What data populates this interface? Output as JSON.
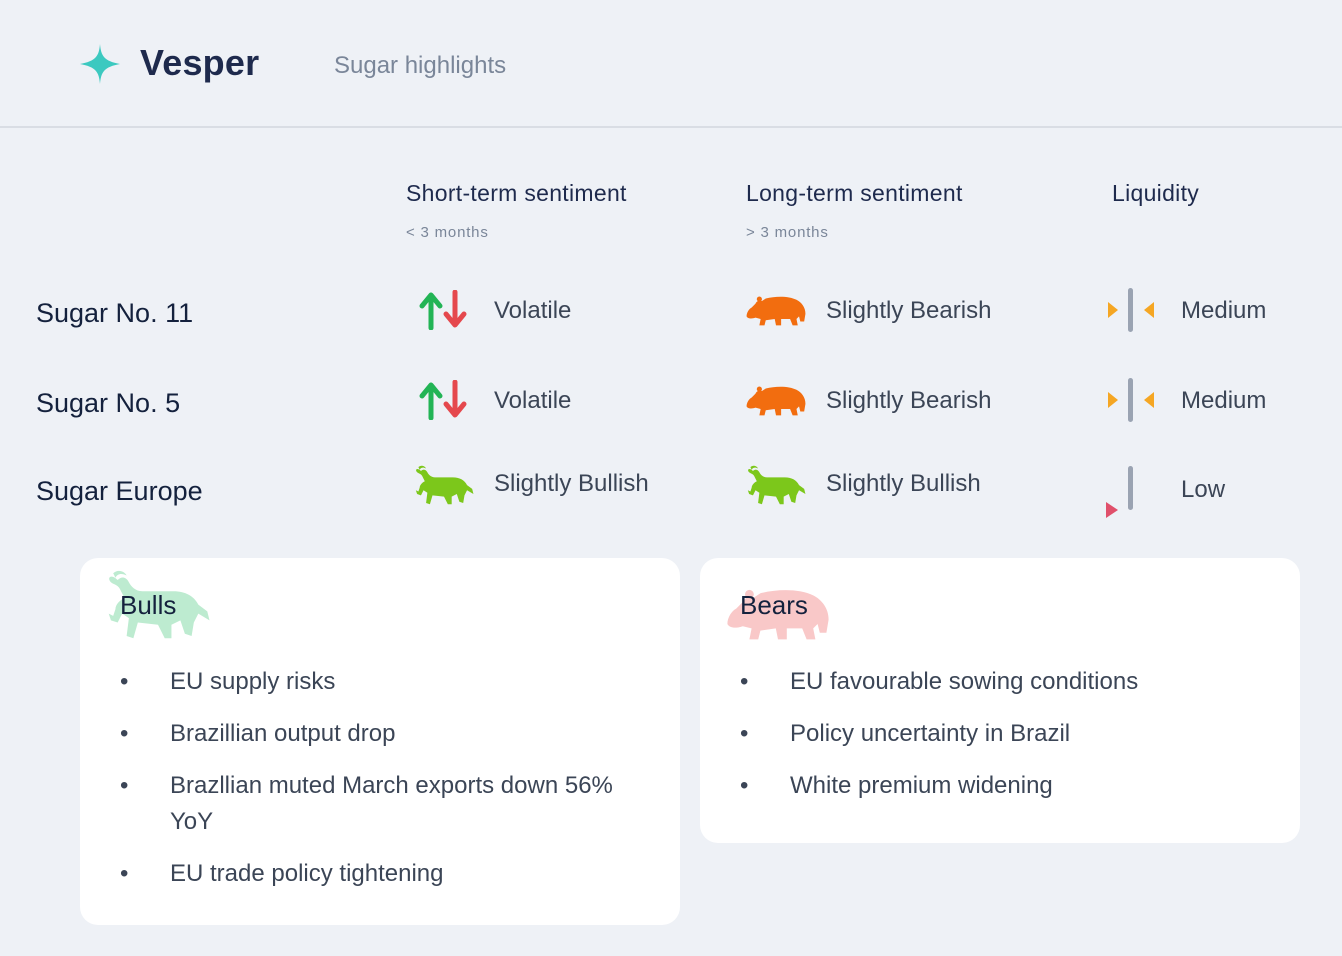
{
  "header": {
    "brand": "Vesper",
    "title": "Sugar highlights"
  },
  "columns": {
    "short_term": {
      "label": "Short-term sentiment",
      "sub": "< 3 months"
    },
    "long_term": {
      "label": "Long-term sentiment",
      "sub": "> 3 months"
    },
    "liquidity": {
      "label": "Liquidity"
    }
  },
  "rows": [
    {
      "name": "Sugar No. 11",
      "short_term": "Volatile",
      "short_icon": "up-down-arrows-icon",
      "long_term": "Slightly Bearish",
      "long_icon": "bear-icon",
      "liquidity": "Medium"
    },
    {
      "name": "Sugar No. 5",
      "short_term": "Volatile",
      "short_icon": "up-down-arrows-icon",
      "long_term": "Slightly Bearish",
      "long_icon": "bear-icon",
      "liquidity": "Medium"
    },
    {
      "name": "Sugar Europe",
      "short_term": "Slightly Bullish",
      "short_icon": "bull-icon",
      "long_term": "Slightly Bullish",
      "long_icon": "bull-icon",
      "liquidity": "Low"
    }
  ],
  "bulls": {
    "title": "Bulls",
    "items": [
      "EU supply risks",
      "Brazillian output drop",
      "Brazllian muted March exports down 56% YoY",
      "EU trade policy tightening"
    ]
  },
  "bears": {
    "title": "Bears",
    "items": [
      "EU favourable sowing conditions",
      "Policy uncertainty in Brazil",
      "White premium widening"
    ]
  },
  "colors": {
    "accent": "#3cc9c0",
    "up": "#22b455",
    "down": "#e5484d",
    "bear": "#f26d0f",
    "bull": "#7cc71b",
    "medium_marker": "#f5a623",
    "low_marker": "#e0506b",
    "bull_soft": "#bdebd0",
    "bear_soft": "#f9c8c8"
  }
}
